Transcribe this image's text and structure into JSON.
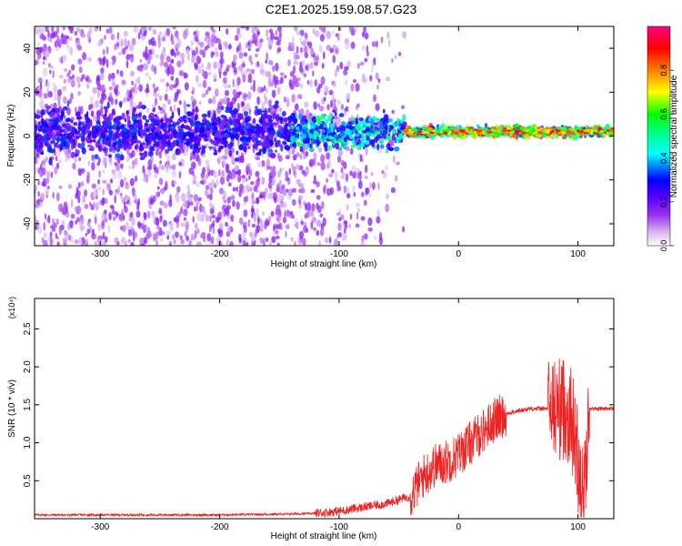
{
  "title": "C2E1.2025.159.08.57.G23",
  "chart_data": [
    {
      "type": "heatmap",
      "xlabel": "Height of straight line (km)",
      "ylabel": "Frequency (Hz)",
      "xlim": [
        -355,
        130
      ],
      "ylim": [
        -50,
        50
      ],
      "xticks": [
        -300,
        -200,
        -100,
        0,
        100
      ],
      "yticks": [
        -40,
        -20,
        0,
        20,
        40
      ],
      "colorbar": {
        "label": "Normalized spectral amplitude",
        "range": [
          0,
          1
        ],
        "ticks": [
          0.0,
          0.2,
          0.4,
          0.6,
          0.8
        ],
        "colors": [
          "#ffffff",
          "#d8b8f0",
          "#9b30f0",
          "#5a00ff",
          "#0000ff",
          "#00ffff",
          "#00ff80",
          "#00ff00",
          "#ffff00",
          "#ff8000",
          "#ff0000",
          "#ff0080"
        ]
      },
      "features": [
        {
          "x_range": [
            -355,
            -140
          ],
          "center_freq": 3,
          "amplitude": 0.15
        },
        {
          "x_range": [
            -140,
            -45
          ],
          "center_freq": 3,
          "amplitude": 0.35
        },
        {
          "x_range": [
            -45,
            130
          ],
          "center_freq": 2,
          "amplitude": 0.85
        }
      ]
    },
    {
      "type": "line",
      "xlabel": "Height of straight line (km)",
      "ylabel": "SNR (10 * v/v)",
      "y_multiplier": "(x10⁴)",
      "xlim": [
        -355,
        130
      ],
      "ylim": [
        0,
        2.9
      ],
      "xticks": [
        -300,
        -200,
        -100,
        0,
        100
      ],
      "yticks": [
        0.5,
        1.0,
        1.5,
        2.0,
        2.5
      ],
      "series": [
        {
          "color": "#ee2222",
          "points": [
            [
              -355,
              0.05
            ],
            [
              -300,
              0.05
            ],
            [
              -250,
              0.05
            ],
            [
              -200,
              0.05
            ],
            [
              -150,
              0.06
            ],
            [
              -120,
              0.07
            ],
            [
              -100,
              0.1
            ],
            [
              -80,
              0.15
            ],
            [
              -60,
              0.2
            ],
            [
              -40,
              0.3
            ],
            [
              -30,
              0.55
            ],
            [
              -20,
              0.7
            ],
            [
              -10,
              0.75
            ],
            [
              0,
              0.85
            ],
            [
              10,
              1.0
            ],
            [
              20,
              1.15
            ],
            [
              30,
              1.3
            ],
            [
              40,
              1.38
            ],
            [
              50,
              1.42
            ],
            [
              60,
              1.45
            ],
            [
              70,
              1.45
            ],
            [
              80,
              1.45
            ],
            [
              90,
              1.45
            ],
            [
              95,
              1.3
            ],
            [
              100,
              0.8
            ],
            [
              105,
              0.3
            ],
            [
              110,
              1.45
            ],
            [
              120,
              1.45
            ],
            [
              130,
              1.45
            ]
          ]
        }
      ]
    }
  ]
}
